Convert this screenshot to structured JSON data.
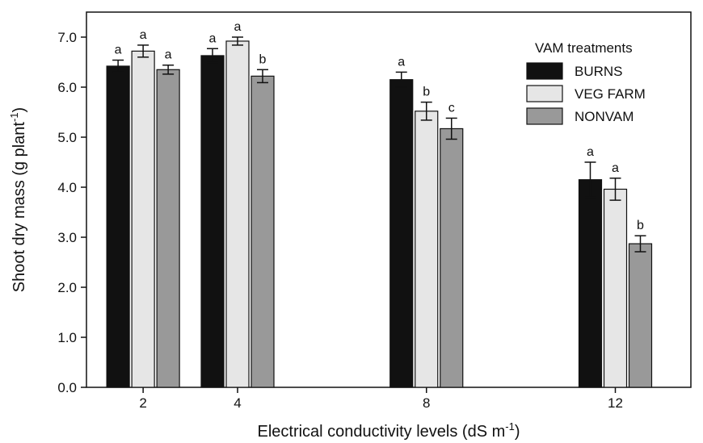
{
  "chart_data": {
    "type": "bar",
    "title": "",
    "xlabel": "Electrical conductivity levels (dS m",
    "xlabel_sup": "-1",
    "xlabel_end": ")",
    "ylabel": "Shoot dry mass (g plant",
    "ylabel_sup": "-1",
    "ylabel_end": ")",
    "x": [
      2,
      4,
      8,
      12
    ],
    "x_tick_labels": [
      "2",
      "4",
      "8",
      "12"
    ],
    "xlim": [
      0.8,
      13.6
    ],
    "ylim": [
      0,
      7.5
    ],
    "y_ticks": [
      0,
      1,
      2,
      3,
      4,
      5,
      6,
      7
    ],
    "y_tick_labels": [
      "0.0",
      "1.0",
      "2.0",
      "3.0",
      "4.0",
      "5.0",
      "6.0",
      "7.0"
    ],
    "grid": false,
    "legend": {
      "title": "VAM treatments",
      "position": "top-right"
    },
    "series": [
      {
        "name": "BURNS",
        "color": "#111111",
        "values": [
          6.42,
          6.63,
          6.15,
          4.15
        ],
        "errors": [
          0.12,
          0.14,
          0.15,
          0.35
        ],
        "letters": [
          "a",
          "a",
          "a",
          "a"
        ]
      },
      {
        "name": "VEG FARM",
        "color": "#e6e6e6",
        "values": [
          6.72,
          6.92,
          5.52,
          3.96
        ],
        "errors": [
          0.12,
          0.08,
          0.18,
          0.22
        ],
        "letters": [
          "a",
          "a",
          "b",
          "a"
        ]
      },
      {
        "name": "NONVAM",
        "color": "#999999",
        "values": [
          6.35,
          6.22,
          5.17,
          2.87
        ],
        "errors": [
          0.09,
          0.13,
          0.21,
          0.16
        ],
        "letters": [
          "a",
          "b",
          "c",
          "b"
        ]
      }
    ]
  }
}
